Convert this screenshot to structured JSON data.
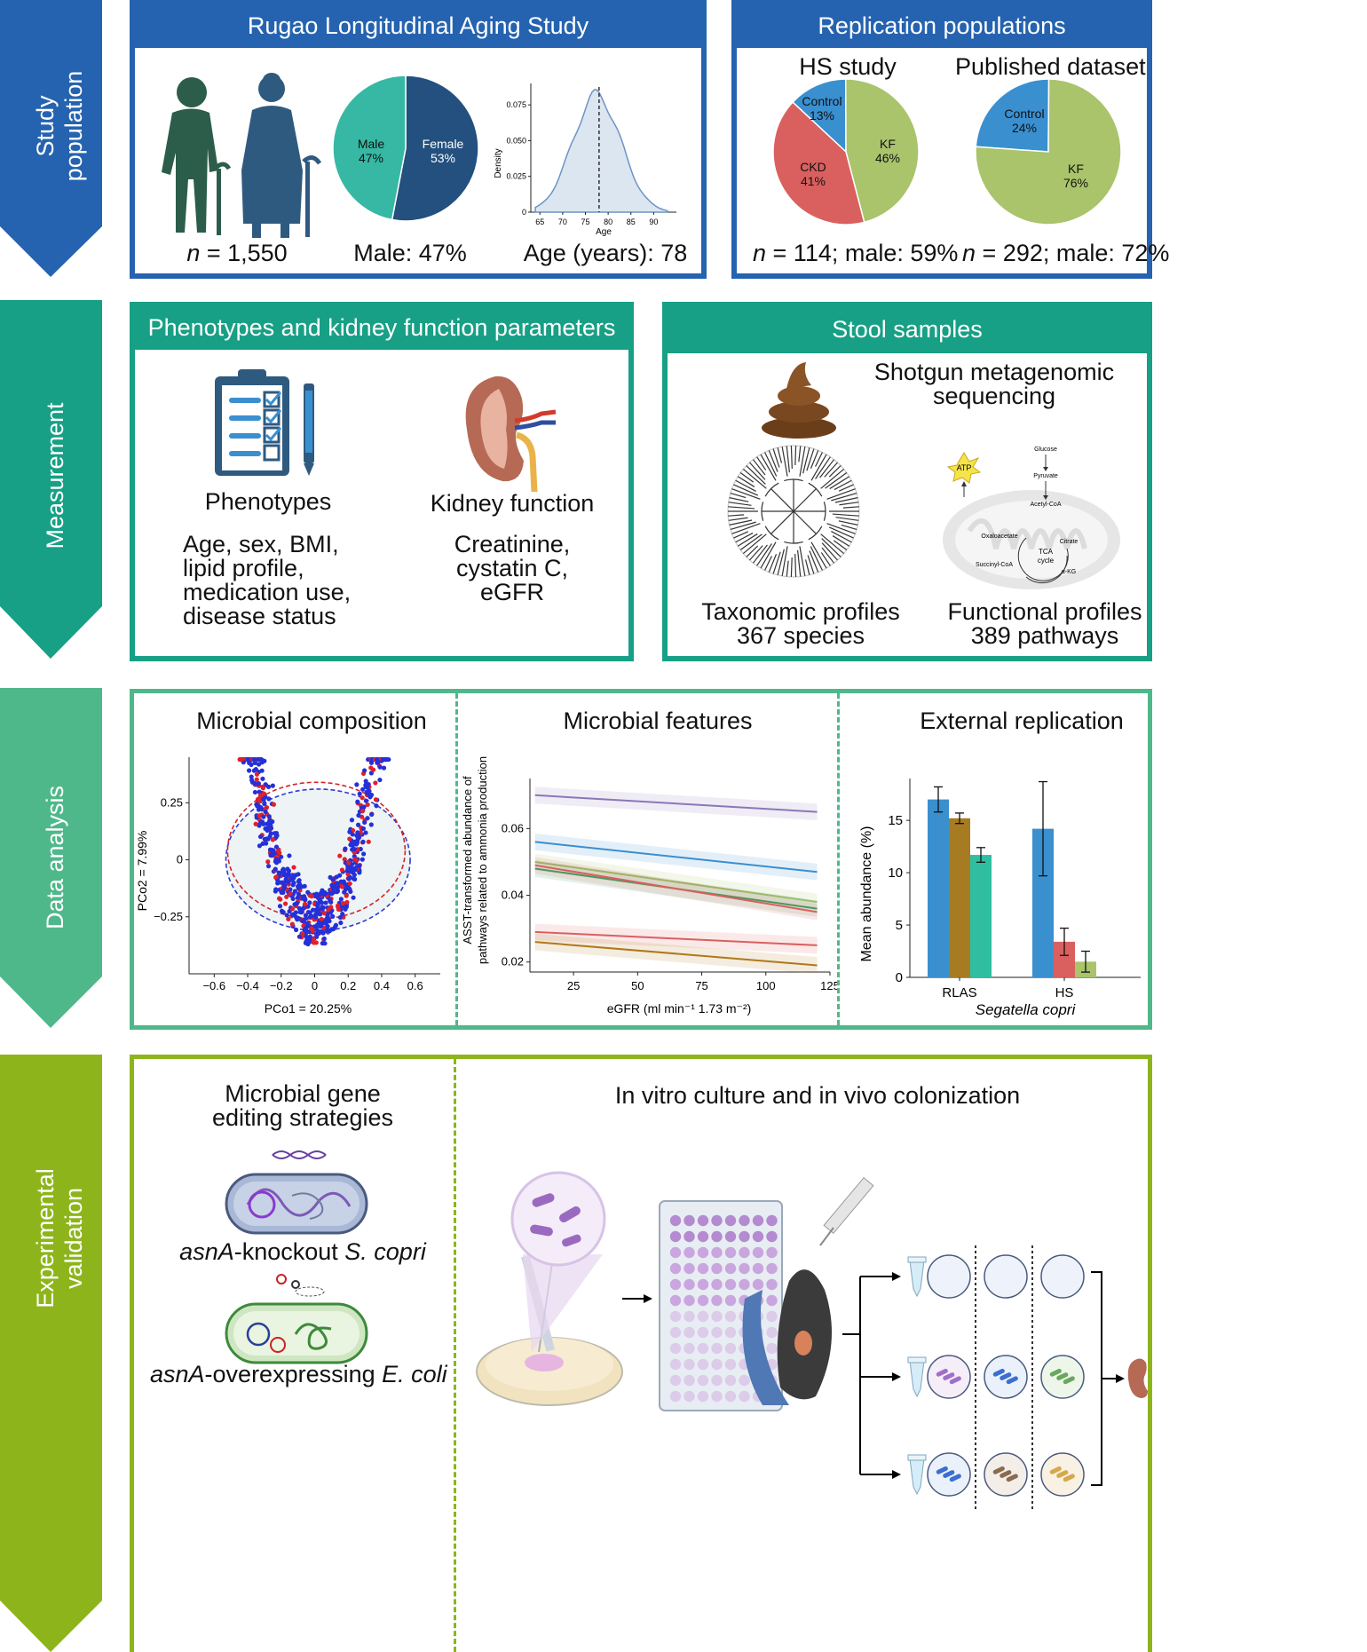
{
  "rows": {
    "study_population": {
      "label_line1": "Study",
      "label_line2": "population",
      "color": "#2563b0"
    },
    "measurement": {
      "label": "Measurement",
      "color": "#17a085"
    },
    "data_analysis": {
      "label": "Data analysis",
      "color": "#4fb88a"
    },
    "experimental_validation": {
      "label_line1": "Experimental",
      "label_line2": "validation",
      "color": "#8db51b"
    }
  },
  "rlas": {
    "title": "Rugao Longitudinal Aging Study",
    "n_caption_italic": "n",
    "n_caption_rest": " = 1,550",
    "pie": {
      "male_label": "Male",
      "male_pct": "47%",
      "female_label": "Female",
      "female_pct": "53%",
      "male_value": 47,
      "female_value": 53
    },
    "male_caption": "Male: 47%",
    "age_caption": "Age (years): 78",
    "density": {
      "ylabel": "Density",
      "xlabel": "Age",
      "yticks": [
        "0",
        "0.025",
        "0.050",
        "0.075"
      ],
      "xticks": [
        "65",
        "70",
        "75",
        "80",
        "85",
        "90"
      ],
      "median": 78
    }
  },
  "replication": {
    "title": "Replication populations",
    "hs": {
      "title": "HS study",
      "slices": [
        {
          "label": "Control",
          "pct": "13%",
          "value": 13,
          "color": "#3a8fcf"
        },
        {
          "label": "KF",
          "pct": "46%",
          "value": 46,
          "color": "#a9c46b"
        },
        {
          "label": "CKD",
          "pct": "41%",
          "value": 41,
          "color": "#d9605f"
        }
      ],
      "caption_italic": "n",
      "caption_rest": " = 114; male: 59%"
    },
    "published": {
      "title": "Published dataset",
      "slices": [
        {
          "label": "Control",
          "pct": "24%",
          "value": 24,
          "color": "#3a8fcf"
        },
        {
          "label": "KF",
          "pct": "76%",
          "value": 76,
          "color": "#a9c46b"
        }
      ],
      "caption_italic": "n",
      "caption_rest": " = 292; male: 72%"
    }
  },
  "phenotypes_panel": {
    "title": "Phenotypes and kidney function parameters",
    "phenotypes_label": "Phenotypes",
    "phenotypes_list": [
      "Age, sex, BMI,",
      "lipid profile,",
      "medication use,",
      "disease status"
    ],
    "kidney_label": "Kidney function",
    "kidney_list": [
      "Creatinine,",
      "cystatin C,",
      "eGFR"
    ]
  },
  "stool_panel": {
    "title": "Stool samples",
    "seq_line1": "Shotgun metagenomic",
    "seq_line2": "sequencing",
    "tax_line1": "Taxonomic profiles",
    "tax_line2": "367 species",
    "func_line1": "Functional profiles",
    "func_line2": "389 pathways",
    "pathway": {
      "atp": "ATP",
      "glucose": "Glucose",
      "pyruvate": "Pyruvate",
      "acetyl": "Acetyl-CoA",
      "oxalo": "Oxaloacetate",
      "citrate": "Citrate",
      "tca": "TCA",
      "cycle": "cycle",
      "succ": "Succinyl-CoA",
      "akg": "α-KG"
    }
  },
  "analysis": {
    "composition": {
      "title": "Microbial composition",
      "xlabel": "PCo1 = 20.25%",
      "ylabel": "PCo2 = 7.99%",
      "xticks": [
        "−0.6",
        "−0.4",
        "−0.2",
        "0",
        "0.2",
        "0.4",
        "0.6"
      ],
      "yticks": [
        "0.25",
        "0",
        "−0.25"
      ]
    },
    "features": {
      "title": "Microbial features",
      "ylabel_line1": "ASST-transformed abundance of",
      "ylabel_line2": "pathways related to ammonia production",
      "xlabel": "eGFR (ml min⁻¹ 1.73 m⁻²)",
      "xticks": [
        "25",
        "50",
        "75",
        "100",
        "125"
      ],
      "yticks": [
        "0.02",
        "0.04",
        "0.06"
      ]
    },
    "replication": {
      "title": "External replication",
      "ylabel": "Mean abundance (%)",
      "species": "Segatella copri",
      "yticks": [
        "0",
        "5",
        "10",
        "15"
      ],
      "groups": [
        "RLAS",
        "HS"
      ]
    }
  },
  "validation": {
    "gene_title_line1": "Microbial gene",
    "gene_title_line2": "editing strategies",
    "knockout_italic": "asnA",
    "knockout_rest": "-knockout ",
    "knockout_species": "S. copri",
    "overexp_italic": "asnA",
    "overexp_rest": "-overexpressing ",
    "overexp_species": "E. coli",
    "culture_title": "In vitro culture and in vivo colonization"
  },
  "chart_data": [
    {
      "type": "pie",
      "title": "",
      "categories": [
        "Male",
        "Female"
      ],
      "values": [
        47,
        53
      ]
    },
    {
      "type": "pie",
      "title": "HS study",
      "categories": [
        "Control",
        "KF",
        "CKD"
      ],
      "values": [
        13,
        46,
        41
      ]
    },
    {
      "type": "pie",
      "title": "Published dataset",
      "categories": [
        "Control",
        "KF"
      ],
      "values": [
        24,
        76
      ]
    },
    {
      "type": "line",
      "title": "Microbial features",
      "xlabel": "eGFR (ml min⁻¹ 1.73 m⁻²)",
      "ylabel": "ASST-transformed abundance of pathways related to ammonia production",
      "xlim": [
        8,
        125
      ],
      "ylim": [
        0.017,
        0.075
      ],
      "x": [
        10,
        120
      ],
      "series": [
        {
          "values": [
            0.07,
            0.065
          ],
          "color": "#8b77b8"
        },
        {
          "values": [
            0.056,
            0.047
          ],
          "color": "#3a8fcf"
        },
        {
          "values": [
            0.05,
            0.038
          ],
          "color": "#a9c46b"
        },
        {
          "values": [
            0.048,
            0.036
          ],
          "color": "#3a9e63"
        },
        {
          "values": [
            0.049,
            0.035
          ],
          "color": "#d9605f"
        },
        {
          "values": [
            0.029,
            0.025
          ],
          "color": "#d9605f"
        },
        {
          "values": [
            0.026,
            0.019
          ],
          "color": "#b07818"
        }
      ]
    },
    {
      "type": "bar",
      "title": "External replication",
      "xlabel": "Segatella copri",
      "ylabel": "Mean abundance (%)",
      "ylim": [
        0,
        19
      ],
      "categories": [
        "RLAS",
        "HS"
      ],
      "series": [
        {
          "values": [
            17.0,
            14.2
          ],
          "err": [
            1.2,
            4.5
          ]
        },
        {
          "values": [
            15.2,
            3.4
          ],
          "err": [
            0.5,
            1.3
          ]
        },
        {
          "values": [
            11.7,
            1.5
          ],
          "err": [
            0.7,
            1.0
          ]
        }
      ],
      "colors": [
        [
          "#3a8fcf",
          "#a77b22",
          "#2fbfa0"
        ],
        [
          "#3a8fcf",
          "#d9605f",
          "#a9c46b"
        ]
      ]
    }
  ]
}
